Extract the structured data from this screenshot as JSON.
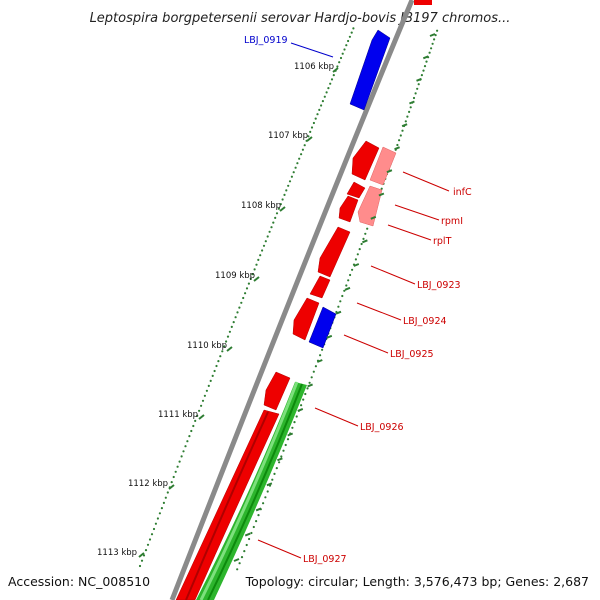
{
  "title": "Leptospira borgpetersenii serovar Hardjo-bovis JB197 chromos...",
  "footer": {
    "accession": "Accession: NC_008510",
    "summary": "Topology: circular; Length: 3,576,473 bp; Genes: 2,687"
  },
  "colors": {
    "forward_gene": "#ff0000",
    "reverse_gene": "#0000ff",
    "rna_gene": "#ff8080",
    "gc_skew": "#00aa00",
    "backbone": "#888888",
    "tick": "#2e7d32",
    "label_blue": "#0000cc",
    "label_red": "#cc0000"
  },
  "kbp_labels": [
    "1106 kbp",
    "1107 kbp",
    "1108 kbp",
    "1109 kbp",
    "1110 kbp",
    "1111 kbp",
    "1112 kbp",
    "1113 kbp"
  ],
  "gene_labels": [
    "LBJ_0919",
    "infC",
    "rpmI",
    "rplT",
    "LBJ_0923",
    "LBJ_0924",
    "LBJ_0925",
    "LBJ_0926",
    "LBJ_0927"
  ]
}
